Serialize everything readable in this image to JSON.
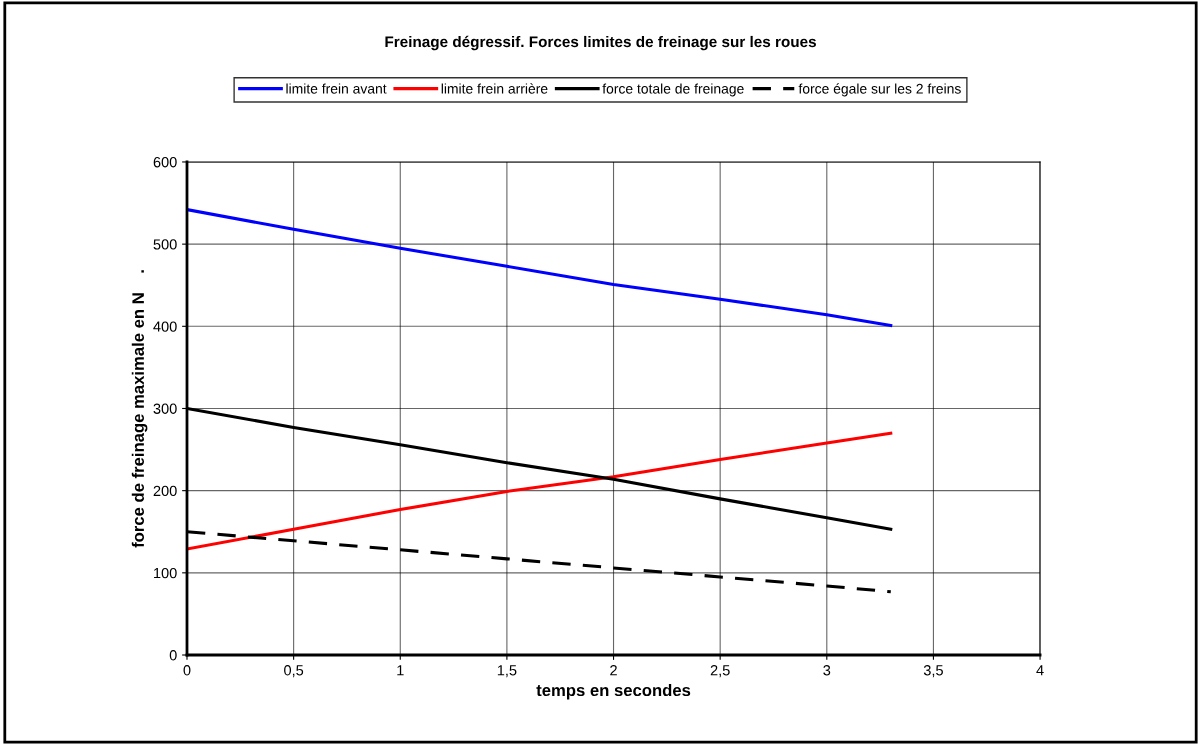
{
  "chart_data": {
    "type": "line",
    "title": "Freinage dégressif. Forces limites de freinage sur les roues",
    "xlabel": "temps en secondes",
    "ylabel": "force de freinage maximale en N    .",
    "x": [
      0,
      0.5,
      1,
      1.5,
      2,
      2.5,
      3,
      3.3
    ],
    "series": [
      {
        "name": "limite frein avant",
        "color": "#0000ff",
        "values": [
          542,
          518,
          495,
          473,
          451,
          433,
          414,
          401
        ]
      },
      {
        "name": "limite frein arrière",
        "color": "#ff0000",
        "values": [
          129,
          153,
          177,
          199,
          217,
          238,
          258,
          270
        ]
      },
      {
        "name": "force totale de freinage",
        "color": "#000000",
        "values": [
          300,
          277,
          256,
          234,
          214,
          190,
          167,
          153
        ]
      },
      {
        "name": "force égale sur les 2 freins",
        "color": "#000000",
        "line_style": "dashed",
        "values": [
          150,
          139,
          128,
          117,
          106,
          95,
          84,
          77
        ]
      }
    ],
    "xlim": [
      0,
      4
    ],
    "xticks": [
      0,
      {
        "value": 0.5,
        "label": "0,5"
      },
      1,
      {
        "value": 1.5,
        "label": "1,5"
      },
      2,
      {
        "value": 2.5,
        "label": "2,5"
      },
      3,
      {
        "value": 3.5,
        "label": "3,5"
      },
      4
    ],
    "ylim": [
      0,
      600
    ],
    "yticks": [
      0,
      100,
      200,
      300,
      400,
      500,
      600
    ],
    "grid": true,
    "legend": "top",
    "line_style": "solid",
    "marker": "none"
  }
}
